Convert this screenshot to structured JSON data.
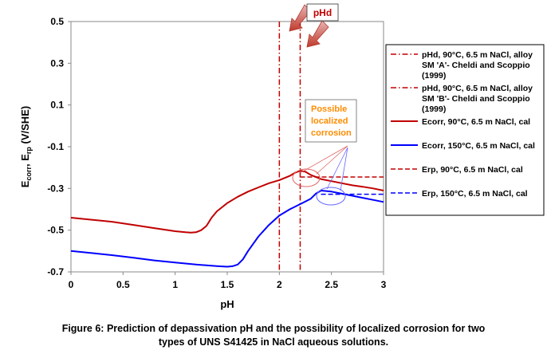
{
  "chart_data": {
    "type": "line",
    "xlabel": "pH",
    "ylabel": "Ecorr, Erp (V/SHE)",
    "xlim": [
      0,
      3
    ],
    "ylim": [
      -0.7,
      0.5
    ],
    "xticks": [
      0,
      0.5,
      1,
      1.5,
      2,
      2.5,
      3
    ],
    "yticks": [
      0.5,
      0.3,
      0.1,
      -0.1,
      -0.3,
      -0.5,
      -0.7
    ],
    "xtick_labels": [
      "0",
      "0.5",
      "1",
      "1.5",
      "2",
      "2.5",
      "3"
    ],
    "ytick_labels": [
      "0.5",
      "0.3",
      "0.1",
      "-0.1",
      "-0.3",
      "-0.5",
      "-0.7"
    ],
    "grid": false,
    "legend_position": "right",
    "series": [
      {
        "name": "pHd, 90°C, 6.5 m NaCl, alloy SM 'A'- Cheldi and Scoppio (1999)",
        "kind": "vline",
        "x": 2.0,
        "color": "#c00000",
        "dash": "dashdot"
      },
      {
        "name": "pHd, 90°C, 6.5 m NaCl, alloy SM 'B'- Cheldi and Scoppio (1999)",
        "kind": "vline",
        "x": 2.2,
        "color": "#c00000",
        "dash": "dashdot"
      },
      {
        "name": "Ecorr, 90°C, 6.5 m NaCl, cal",
        "kind": "line",
        "color": "#c00000",
        "dash": "solid",
        "x": [
          0,
          0.2,
          0.4,
          0.6,
          0.8,
          1.0,
          1.1,
          1.15,
          1.2,
          1.25,
          1.3,
          1.35,
          1.4,
          1.5,
          1.6,
          1.7,
          1.8,
          1.9,
          2.0,
          2.1,
          2.15,
          2.2,
          2.25,
          2.3,
          2.4,
          2.5,
          2.6,
          2.7,
          2.8,
          2.9,
          3.0
        ],
        "y": [
          -0.44,
          -0.45,
          -0.46,
          -0.475,
          -0.49,
          -0.505,
          -0.51,
          -0.512,
          -0.51,
          -0.5,
          -0.48,
          -0.44,
          -0.41,
          -0.37,
          -0.34,
          -0.315,
          -0.295,
          -0.275,
          -0.26,
          -0.24,
          -0.225,
          -0.215,
          -0.22,
          -0.235,
          -0.255,
          -0.265,
          -0.275,
          -0.285,
          -0.292,
          -0.3,
          -0.31
        ]
      },
      {
        "name": "Ecorr, 150°C, 6.5 m NaCl, cal",
        "kind": "line",
        "color": "#0000ff",
        "dash": "solid",
        "x": [
          0,
          0.2,
          0.4,
          0.6,
          0.8,
          1.0,
          1.2,
          1.4,
          1.5,
          1.55,
          1.6,
          1.65,
          1.7,
          1.8,
          1.9,
          2.0,
          2.1,
          2.2,
          2.3,
          2.35,
          2.4,
          2.5,
          2.6,
          2.7,
          2.8,
          2.9,
          3.0
        ],
        "y": [
          -0.6,
          -0.61,
          -0.62,
          -0.632,
          -0.645,
          -0.655,
          -0.665,
          -0.672,
          -0.675,
          -0.673,
          -0.665,
          -0.64,
          -0.6,
          -0.53,
          -0.475,
          -0.43,
          -0.4,
          -0.375,
          -0.35,
          -0.325,
          -0.31,
          -0.315,
          -0.325,
          -0.335,
          -0.345,
          -0.355,
          -0.365
        ]
      },
      {
        "name": "Erp, 90°C, 6.5 m NaCl, cal",
        "kind": "hsegment",
        "x": [
          2.2,
          3.0
        ],
        "y": -0.245,
        "color": "#c00000",
        "dash": "dashed"
      },
      {
        "name": "Erp, 150°C, 6.5 m NaCl, cal",
        "kind": "hsegment",
        "x": [
          2.4,
          3.0
        ],
        "y": -0.328,
        "color": "#0000ff",
        "dash": "dashed"
      }
    ],
    "annotations": [
      {
        "text": "pHd",
        "color": "#c00000",
        "kind": "boxed-label"
      },
      {
        "text": "Possible localized corrosion",
        "lines": [
          "Possible",
          "localized",
          "corrosion"
        ],
        "color": "#ff8c00",
        "kind": "boxed-label"
      }
    ]
  },
  "caption": {
    "line1": "Figure 6: Prediction of depassivation pH and the possibility of localized corrosion for two",
    "line2": "types of UNS S41425 in NaCl aqueous solutions."
  }
}
